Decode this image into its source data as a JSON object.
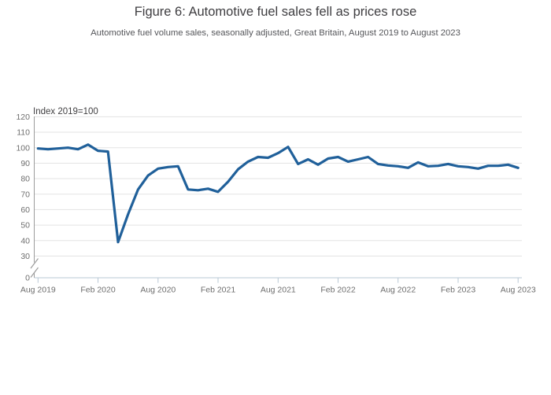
{
  "header": {
    "title": "Figure 6: Automotive fuel sales fell as prices rose",
    "subtitle": "Automotive fuel volume sales, seasonally adjusted, Great Britain, August 2019 to August 2023"
  },
  "chart_data": {
    "type": "line",
    "title": "Figure 6: Automotive fuel sales fell as prices rose",
    "subtitle": "Automotive fuel volume sales, seasonally adjusted, Great Britain, August 2019 to August 2023",
    "ylabel": "Index 2019=100",
    "xlabel": "",
    "x": [
      "Aug 2019",
      "Sep 2019",
      "Oct 2019",
      "Nov 2019",
      "Dec 2019",
      "Jan 2020",
      "Feb 2020",
      "Mar 2020",
      "Apr 2020",
      "May 2020",
      "Jun 2020",
      "Jul 2020",
      "Aug 2020",
      "Sep 2020",
      "Oct 2020",
      "Nov 2020",
      "Dec 2020",
      "Jan 2021",
      "Feb 2021",
      "Mar 2021",
      "Apr 2021",
      "May 2021",
      "Jun 2021",
      "Jul 2021",
      "Aug 2021",
      "Sep 2021",
      "Oct 2021",
      "Nov 2021",
      "Dec 2021",
      "Jan 2022",
      "Feb 2022",
      "Mar 2022",
      "Apr 2022",
      "May 2022",
      "Jun 2022",
      "Jul 2022",
      "Aug 2022",
      "Sep 2022",
      "Oct 2022",
      "Nov 2022",
      "Dec 2022",
      "Jan 2023",
      "Feb 2023",
      "Mar 2023",
      "Apr 2023",
      "May 2023",
      "Jun 2023",
      "Jul 2023",
      "Aug 2023"
    ],
    "series": [
      {
        "name": "Automotive fuel volume sales",
        "values": [
          99.5,
          99,
          99.5,
          100,
          99,
          102,
          98,
          97.5,
          39,
          57,
          73,
          82,
          86.5,
          87.5,
          88,
          73,
          72.5,
          73.5,
          71.5,
          78,
          86,
          91,
          94,
          93.5,
          96.5,
          100.5,
          89.5,
          92.5,
          89,
          93,
          94,
          91,
          92.5,
          94,
          89.5,
          88.5,
          88,
          87,
          90.5,
          88,
          88.3,
          89.5,
          88,
          87.5,
          86.5,
          88.3,
          88.3,
          89,
          87
        ]
      }
    ],
    "x_tick_indices": [
      0,
      6,
      12,
      18,
      24,
      30,
      36,
      42,
      48
    ],
    "x_tick_labels": [
      "Aug 2019",
      "Feb 2020",
      "Aug 2020",
      "Feb 2021",
      "Aug 2021",
      "Feb 2022",
      "Aug 2022",
      "Feb 2023",
      "Aug 2023"
    ],
    "y_gridlines": [
      120,
      110,
      100,
      90,
      80,
      70,
      60,
      50,
      40,
      30
    ],
    "y_zero_label": "0",
    "ylim": [
      0,
      120
    ],
    "y_axis_break": true,
    "grid": "horizontal",
    "legend": "none",
    "colors": {
      "line": "#20609a",
      "grid": "#e3e3e3",
      "x_axis": "#b9c8d5",
      "y_axis": "#9b9b9b",
      "tick_text": "#6e6e6e"
    }
  }
}
